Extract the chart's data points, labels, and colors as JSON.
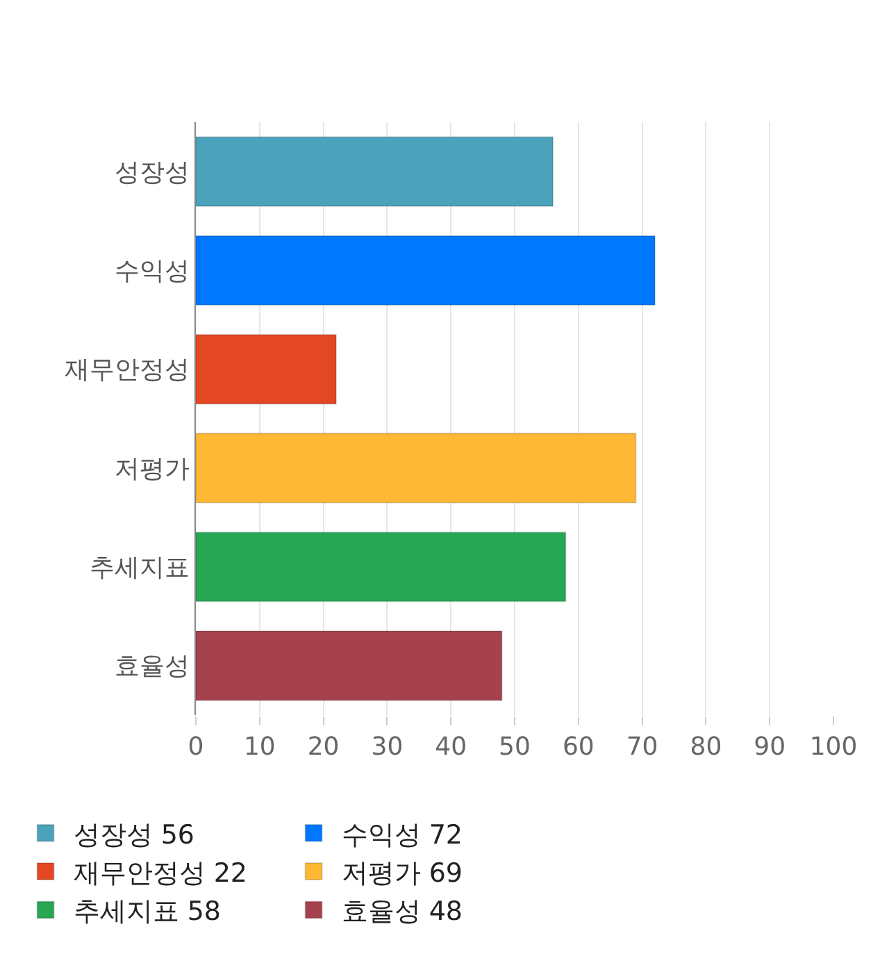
{
  "chart_data": {
    "type": "bar",
    "orientation": "horizontal",
    "categories": [
      "성장성",
      "수익성",
      "재무안정성",
      "저평가",
      "추세지표",
      "효율성"
    ],
    "series": [
      {
        "name": "성장성 56",
        "color": "#4aa3ba",
        "values": [
          56,
          null,
          null,
          null,
          null,
          null
        ]
      },
      {
        "name": "수익성 72",
        "color": "#0077ff",
        "values": [
          null,
          72,
          null,
          null,
          null,
          null
        ]
      },
      {
        "name": "재무안정성 22",
        "color": "#e34724",
        "values": [
          null,
          null,
          22,
          null,
          null,
          null
        ]
      },
      {
        "name": "저평가 69",
        "color": "#ffb833",
        "values": [
          null,
          null,
          null,
          69,
          null,
          null
        ]
      },
      {
        "name": "추세지표 58",
        "color": "#27a654",
        "values": [
          null,
          null,
          null,
          null,
          58,
          null
        ]
      },
      {
        "name": "효율성 48",
        "color": "#a6414e",
        "values": [
          null,
          null,
          null,
          null,
          null,
          48
        ]
      }
    ],
    "xlim": [
      0,
      100
    ],
    "xticks": [
      0,
      10,
      20,
      30,
      40,
      50,
      60,
      70,
      80,
      90,
      100
    ],
    "grid": "x",
    "legend": "bottom"
  }
}
